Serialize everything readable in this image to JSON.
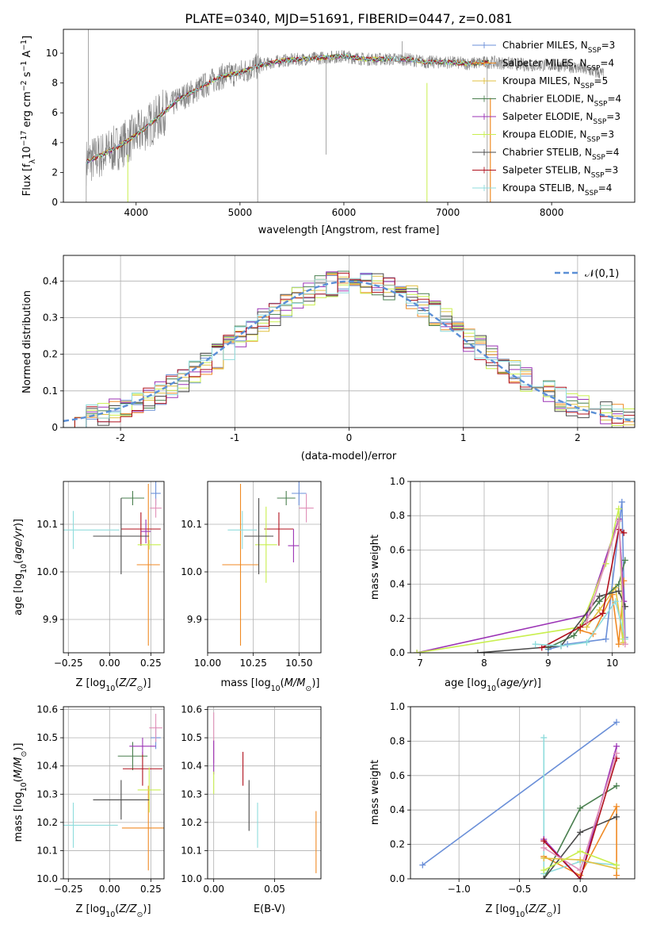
{
  "title": "PLATE=0340, MJD=51691, FIBERID=0447, z=0.081",
  "palette": [
    "#6a8fd8",
    "#f08a24",
    "#e0c040",
    "#4a7f4f",
    "#9b33b5",
    "#c9ef4f",
    "#4a4a4a",
    "#b0101d",
    "#8fdcdc",
    "#e090b8",
    "#e04060"
  ],
  "chart_data": [
    {
      "id": "spectrum",
      "type": "line",
      "xlabel": "wavelength [Angstrom, rest frame]",
      "ylabel": "Flux [f_λ10^-17 erg cm^-2 s^-1 A^-1]",
      "xlim": [
        3300,
        8800
      ],
      "ylim": [
        0,
        11.6
      ],
      "xticks": [
        4000,
        5000,
        6000,
        7000,
        8000
      ],
      "yticks": [
        0,
        2,
        4,
        6,
        8,
        10
      ],
      "legend_position": "top-right",
      "continuum": {
        "x": [
          3520,
          3800,
          4000,
          4200,
          4400,
          4600,
          4800,
          5000,
          5200,
          5400,
          5600,
          5800,
          6000,
          6200,
          6400,
          6600,
          6800,
          7000,
          7200,
          7400,
          7600,
          7800,
          8000,
          8200,
          8500
        ],
        "y": [
          2.7,
          3.6,
          4.5,
          5.6,
          6.9,
          7.6,
          8.4,
          8.7,
          9.2,
          9.5,
          9.6,
          9.7,
          9.8,
          9.6,
          9.6,
          9.6,
          9.4,
          9.4,
          9.3,
          9.4,
          9.3,
          9.2,
          9.2,
          9.1,
          8.6
        ]
      },
      "series": [
        {
          "name": "Chabrier MILES",
          "nssp": "3"
        },
        {
          "name": "Salpeter MILES",
          "nssp": "4"
        },
        {
          "name": "Kroupa MILES",
          "nssp": "5"
        },
        {
          "name": "Chabrier ELODIE",
          "nssp": "4"
        },
        {
          "name": "Salpeter ELODIE",
          "nssp": "3"
        },
        {
          "name": "Kroupa ELODIE",
          "nssp": "3"
        },
        {
          "name": "Chabrier STELIB",
          "nssp": "4"
        },
        {
          "name": "Salpeter STELIB",
          "nssp": "3"
        },
        {
          "name": "Kroupa STELIB",
          "nssp": "4"
        }
      ]
    },
    {
      "id": "residuals",
      "type": "histogram",
      "xlabel": "(data-model)/error",
      "ylabel": "Normed distribution",
      "xlim": [
        -2.5,
        2.5
      ],
      "ylim": [
        0,
        0.47
      ],
      "xticks": [
        -2,
        -1,
        0,
        1,
        2
      ],
      "yticks": [
        0,
        0.1,
        0.2,
        0.3,
        0.4
      ],
      "bin_width": 0.1,
      "reference": {
        "name": "𝒩(0,1)",
        "mean": 0,
        "sigma": 1
      },
      "legend_position": "top-right"
    },
    {
      "id": "age-vs-z",
      "type": "scatter",
      "xlabel": "Z [log10(Z/Z⊙)]",
      "ylabel": "age [log10(age/yr)]",
      "xlim": [
        -0.28,
        0.33
      ],
      "ylim": [
        9.83,
        10.19
      ],
      "xticks": [
        -0.25,
        0,
        0.25
      ],
      "xtick_labels": [
        "−0.25",
        "0.00",
        "0.25"
      ],
      "yticks": [
        9.9,
        10.0,
        10.1
      ],
      "ytick_labels": [
        "9.9",
        "10.0",
        "10.1"
      ],
      "points": [
        {
          "x": 0.28,
          "y": 10.165,
          "xe": 0.03,
          "ye": 0.025,
          "c": 0
        },
        {
          "x": 0.235,
          "y": 10.015,
          "xe": 0.07,
          "ye": 0.17,
          "c": 1
        },
        {
          "x": 0.14,
          "y": 10.155,
          "xe": 0.07,
          "ye": 0.015,
          "c": 3
        },
        {
          "x": 0.19,
          "y": 10.09,
          "xe": 0.12,
          "ye": 0.035,
          "c": 7
        },
        {
          "x": 0.22,
          "y": 10.085,
          "xe": 0.03,
          "ye": 0.025,
          "c": 4
        },
        {
          "x": 0.24,
          "y": 10.057,
          "xe": 0.07,
          "ye": 0.01,
          "c": 5
        },
        {
          "x": 0.28,
          "y": 10.134,
          "xe": 0.035,
          "ye": 0.02,
          "c": 9
        },
        {
          "x": 0.07,
          "y": 10.075,
          "xe": 0.17,
          "ye": 0.08,
          "c": 6
        },
        {
          "x": -0.22,
          "y": 10.088,
          "xe": 0.28,
          "ye": 0.04,
          "c": 8
        }
      ]
    },
    {
      "id": "age-vs-mass",
      "type": "scatter",
      "xlabel": "mass [log10(M/M⊙)]",
      "ylabel": "",
      "xlim": [
        10.0,
        10.62
      ],
      "ylim": [
        9.83,
        10.19
      ],
      "xticks": [
        10.0,
        10.25,
        10.5
      ],
      "xtick_labels": [
        "10.00",
        "10.25",
        "10.50"
      ],
      "yticks": [
        9.9,
        10.0,
        10.1
      ],
      "ytick_labels": [
        "9.9",
        "10.0",
        "10.1"
      ],
      "points": [
        {
          "x": 10.5,
          "y": 10.165,
          "xe": 0.04,
          "ye": 0.025,
          "c": 0
        },
        {
          "x": 10.18,
          "y": 10.015,
          "xe": 0.1,
          "ye": 0.17,
          "c": 1
        },
        {
          "x": 10.43,
          "y": 10.155,
          "xe": 0.05,
          "ye": 0.015,
          "c": 3
        },
        {
          "x": 10.39,
          "y": 10.09,
          "xe": 0.08,
          "ye": 0.035,
          "c": 7
        },
        {
          "x": 10.47,
          "y": 10.055,
          "xe": 0.03,
          "ye": 0.035,
          "c": 4
        },
        {
          "x": 10.32,
          "y": 10.057,
          "xe": 0.06,
          "ye": 0.08,
          "c": 5
        },
        {
          "x": 10.54,
          "y": 10.134,
          "xe": 0.04,
          "ye": 0.03,
          "c": 9
        },
        {
          "x": 10.28,
          "y": 10.075,
          "xe": 0.08,
          "ye": 0.08,
          "c": 6
        },
        {
          "x": 10.19,
          "y": 10.088,
          "xe": 0.08,
          "ye": 0.04,
          "c": 8
        }
      ]
    },
    {
      "id": "weight-vs-age",
      "type": "line",
      "xlabel": "age [log10(age/yr)]",
      "ylabel": "mass weight",
      "xlim": [
        6.85,
        10.35
      ],
      "ylim": [
        0,
        1.0
      ],
      "xticks": [
        7,
        8,
        9,
        10
      ],
      "xtick_labels": [
        "7",
        "8",
        "9",
        "10"
      ],
      "yticks": [
        0,
        0.2,
        0.4,
        0.6,
        0.8,
        1.0
      ],
      "ytick_labels": [
        "0.0",
        "0.2",
        "0.4",
        "0.6",
        "0.8",
        "1.0"
      ],
      "series": [
        {
          "c": 0,
          "x": [
            9.0,
            9.3,
            9.9,
            10.15,
            10.2
          ],
          "y": [
            0.02,
            0.05,
            0.08,
            0.88,
            0.09
          ]
        },
        {
          "c": 1,
          "x": [
            9.5,
            9.7,
            10.0,
            10.1,
            10.18
          ],
          "y": [
            0.13,
            0.11,
            0.34,
            0.05,
            0.42
          ]
        },
        {
          "c": 2,
          "x": [
            9.6,
            9.8,
            10.05,
            10.17
          ],
          "y": [
            0.15,
            0.25,
            0.38,
            0.06
          ]
        },
        {
          "c": 3,
          "x": [
            9.0,
            9.4,
            9.8,
            10.1,
            10.2
          ],
          "y": [
            0.03,
            0.1,
            0.3,
            0.4,
            0.54
          ]
        },
        {
          "c": 4,
          "x": [
            6.95,
            9.6,
            10.1,
            10.18
          ],
          "y": [
            0.0,
            0.22,
            0.78,
            0.3
          ]
        },
        {
          "c": 5,
          "x": [
            6.95,
            9.5,
            9.9,
            10.1,
            10.17
          ],
          "y": [
            0.0,
            0.15,
            0.52,
            0.84,
            0.08
          ]
        },
        {
          "c": 6,
          "x": [
            7.9,
            9.2,
            9.8,
            10.1,
            10.2
          ],
          "y": [
            0.0,
            0.04,
            0.33,
            0.36,
            0.27
          ]
        },
        {
          "c": 7,
          "x": [
            8.9,
            9.5,
            9.85,
            10.1,
            10.18
          ],
          "y": [
            0.03,
            0.15,
            0.23,
            0.72,
            0.7
          ]
        },
        {
          "c": 8,
          "x": [
            8.8,
            9.2,
            9.6,
            10.05,
            10.2
          ],
          "y": [
            0.05,
            0.04,
            0.06,
            0.3,
            0.08
          ]
        },
        {
          "c": 9,
          "x": [
            9.6,
            10.1,
            10.2
          ],
          "y": [
            0.18,
            0.77,
            0.05
          ]
        }
      ]
    },
    {
      "id": "mass-vs-z",
      "type": "scatter",
      "xlabel": "Z [log10(Z/Z⊙)]",
      "ylabel": "mass [log10(M/M⊙)]",
      "xlim": [
        -0.28,
        0.33
      ],
      "ylim": [
        10.0,
        10.61
      ],
      "xticks": [
        -0.25,
        0,
        0.25
      ],
      "xtick_labels": [
        "−0.25",
        "0.00",
        "0.25"
      ],
      "yticks": [
        10.0,
        10.1,
        10.2,
        10.3,
        10.4,
        10.5,
        10.6
      ],
      "ytick_labels": [
        "10.0",
        "10.1",
        "10.2",
        "10.3",
        "10.4",
        "10.5",
        "10.6"
      ],
      "points": [
        {
          "x": 0.28,
          "y": 10.5,
          "xe": 0.03,
          "ye": 0.04,
          "c": 0
        },
        {
          "x": 0.235,
          "y": 10.18,
          "xe": 0.16,
          "ye": 0.15,
          "c": 1
        },
        {
          "x": 0.14,
          "y": 10.435,
          "xe": 0.09,
          "ye": 0.05,
          "c": 3
        },
        {
          "x": 0.2,
          "y": 10.39,
          "xe": 0.12,
          "ye": 0.06,
          "c": 7
        },
        {
          "x": 0.2,
          "y": 10.47,
          "xe": 0.08,
          "ye": 0.03,
          "c": 4
        },
        {
          "x": 0.24,
          "y": 10.315,
          "xe": 0.07,
          "ye": 0.08,
          "c": 5
        },
        {
          "x": 0.28,
          "y": 10.535,
          "xe": 0.04,
          "ye": 0.05,
          "c": 9
        },
        {
          "x": 0.07,
          "y": 10.28,
          "xe": 0.17,
          "ye": 0.07,
          "c": 6
        },
        {
          "x": -0.22,
          "y": 10.19,
          "xe": 0.27,
          "ye": 0.08,
          "c": 8
        }
      ]
    },
    {
      "id": "mass-vs-ebv",
      "type": "scatter",
      "xlabel": "E(B-V)",
      "ylabel": "",
      "xlim": [
        -0.005,
        0.088
      ],
      "ylim": [
        10.0,
        10.61
      ],
      "xticks": [
        0,
        0.05
      ],
      "xtick_labels": [
        "0.00",
        "0.05"
      ],
      "yticks": [
        10.0,
        10.1,
        10.2,
        10.3,
        10.4,
        10.5,
        10.6
      ],
      "ytick_labels": [
        "10.0",
        "10.1",
        "10.2",
        "10.3",
        "10.4",
        "10.5",
        "10.6"
      ],
      "points": [
        {
          "x": 0.0,
          "y": 10.5,
          "xe": 0,
          "ye": 0.09,
          "c": 9
        },
        {
          "x": 0.0,
          "y": 10.43,
          "xe": 0,
          "ye": 0.06,
          "c": 4
        },
        {
          "x": 0.0,
          "y": 10.34,
          "xe": 0,
          "ye": 0.04,
          "c": 5
        },
        {
          "x": 0.024,
          "y": 10.39,
          "xe": 0,
          "ye": 0.06,
          "c": 7
        },
        {
          "x": 0.029,
          "y": 10.26,
          "xe": 0,
          "ye": 0.09,
          "c": 6
        },
        {
          "x": 0.036,
          "y": 10.19,
          "xe": 0,
          "ye": 0.08,
          "c": 8
        },
        {
          "x": 0.084,
          "y": 10.13,
          "xe": 0,
          "ye": 0.11,
          "c": 1
        }
      ]
    },
    {
      "id": "weight-vs-z",
      "type": "line",
      "xlabel": "Z [log10(Z/Z⊙)]",
      "ylabel": "mass weight",
      "xlim": [
        -1.4,
        0.45
      ],
      "ylim": [
        0,
        1.0
      ],
      "xticks": [
        -1.0,
        -0.5,
        0.0
      ],
      "xtick_labels": [
        "−1.0",
        "−0.5",
        "0.0"
      ],
      "yticks": [
        0,
        0.2,
        0.4,
        0.6,
        0.8,
        1.0
      ],
      "ytick_labels": [
        "0.0",
        "0.2",
        "0.4",
        "0.6",
        "0.8",
        "1.0"
      ],
      "series": [
        {
          "c": 0,
          "x": [
            -1.3,
            0.3
          ],
          "y": [
            0.08,
            0.91
          ]
        },
        {
          "c": 1,
          "x": [
            -0.3,
            0.0,
            0.3,
            0.3
          ],
          "y": [
            0.13,
            0.02,
            0.42,
            0.02
          ]
        },
        {
          "c": 8,
          "x": [
            -0.3,
            -0.3,
            0.0,
            0.3
          ],
          "y": [
            0.82,
            0.03,
            0.1,
            0.08
          ]
        },
        {
          "c": 3,
          "x": [
            -0.3,
            0.0,
            0.3
          ],
          "y": [
            0.0,
            0.41,
            0.54
          ]
        },
        {
          "c": 6,
          "x": [
            -0.3,
            0.0,
            0.3
          ],
          "y": [
            0.0,
            0.27,
            0.36
          ]
        },
        {
          "c": 4,
          "x": [
            -0.3,
            0.0,
            0.3
          ],
          "y": [
            0.23,
            0.0,
            0.77
          ]
        },
        {
          "c": 7,
          "x": [
            -0.3,
            0.0,
            0.3
          ],
          "y": [
            0.22,
            0.0,
            0.7
          ]
        },
        {
          "c": 9,
          "x": [
            -0.3,
            0.0,
            0.3
          ],
          "y": [
            0.18,
            0.05,
            0.73
          ]
        },
        {
          "c": 2,
          "x": [
            -0.3,
            0.0,
            0.3
          ],
          "y": [
            0.12,
            0.11,
            0.06
          ]
        },
        {
          "c": 5,
          "x": [
            -0.3,
            0.0,
            0.3
          ],
          "y": [
            0.05,
            0.16,
            0.08
          ]
        }
      ]
    }
  ]
}
